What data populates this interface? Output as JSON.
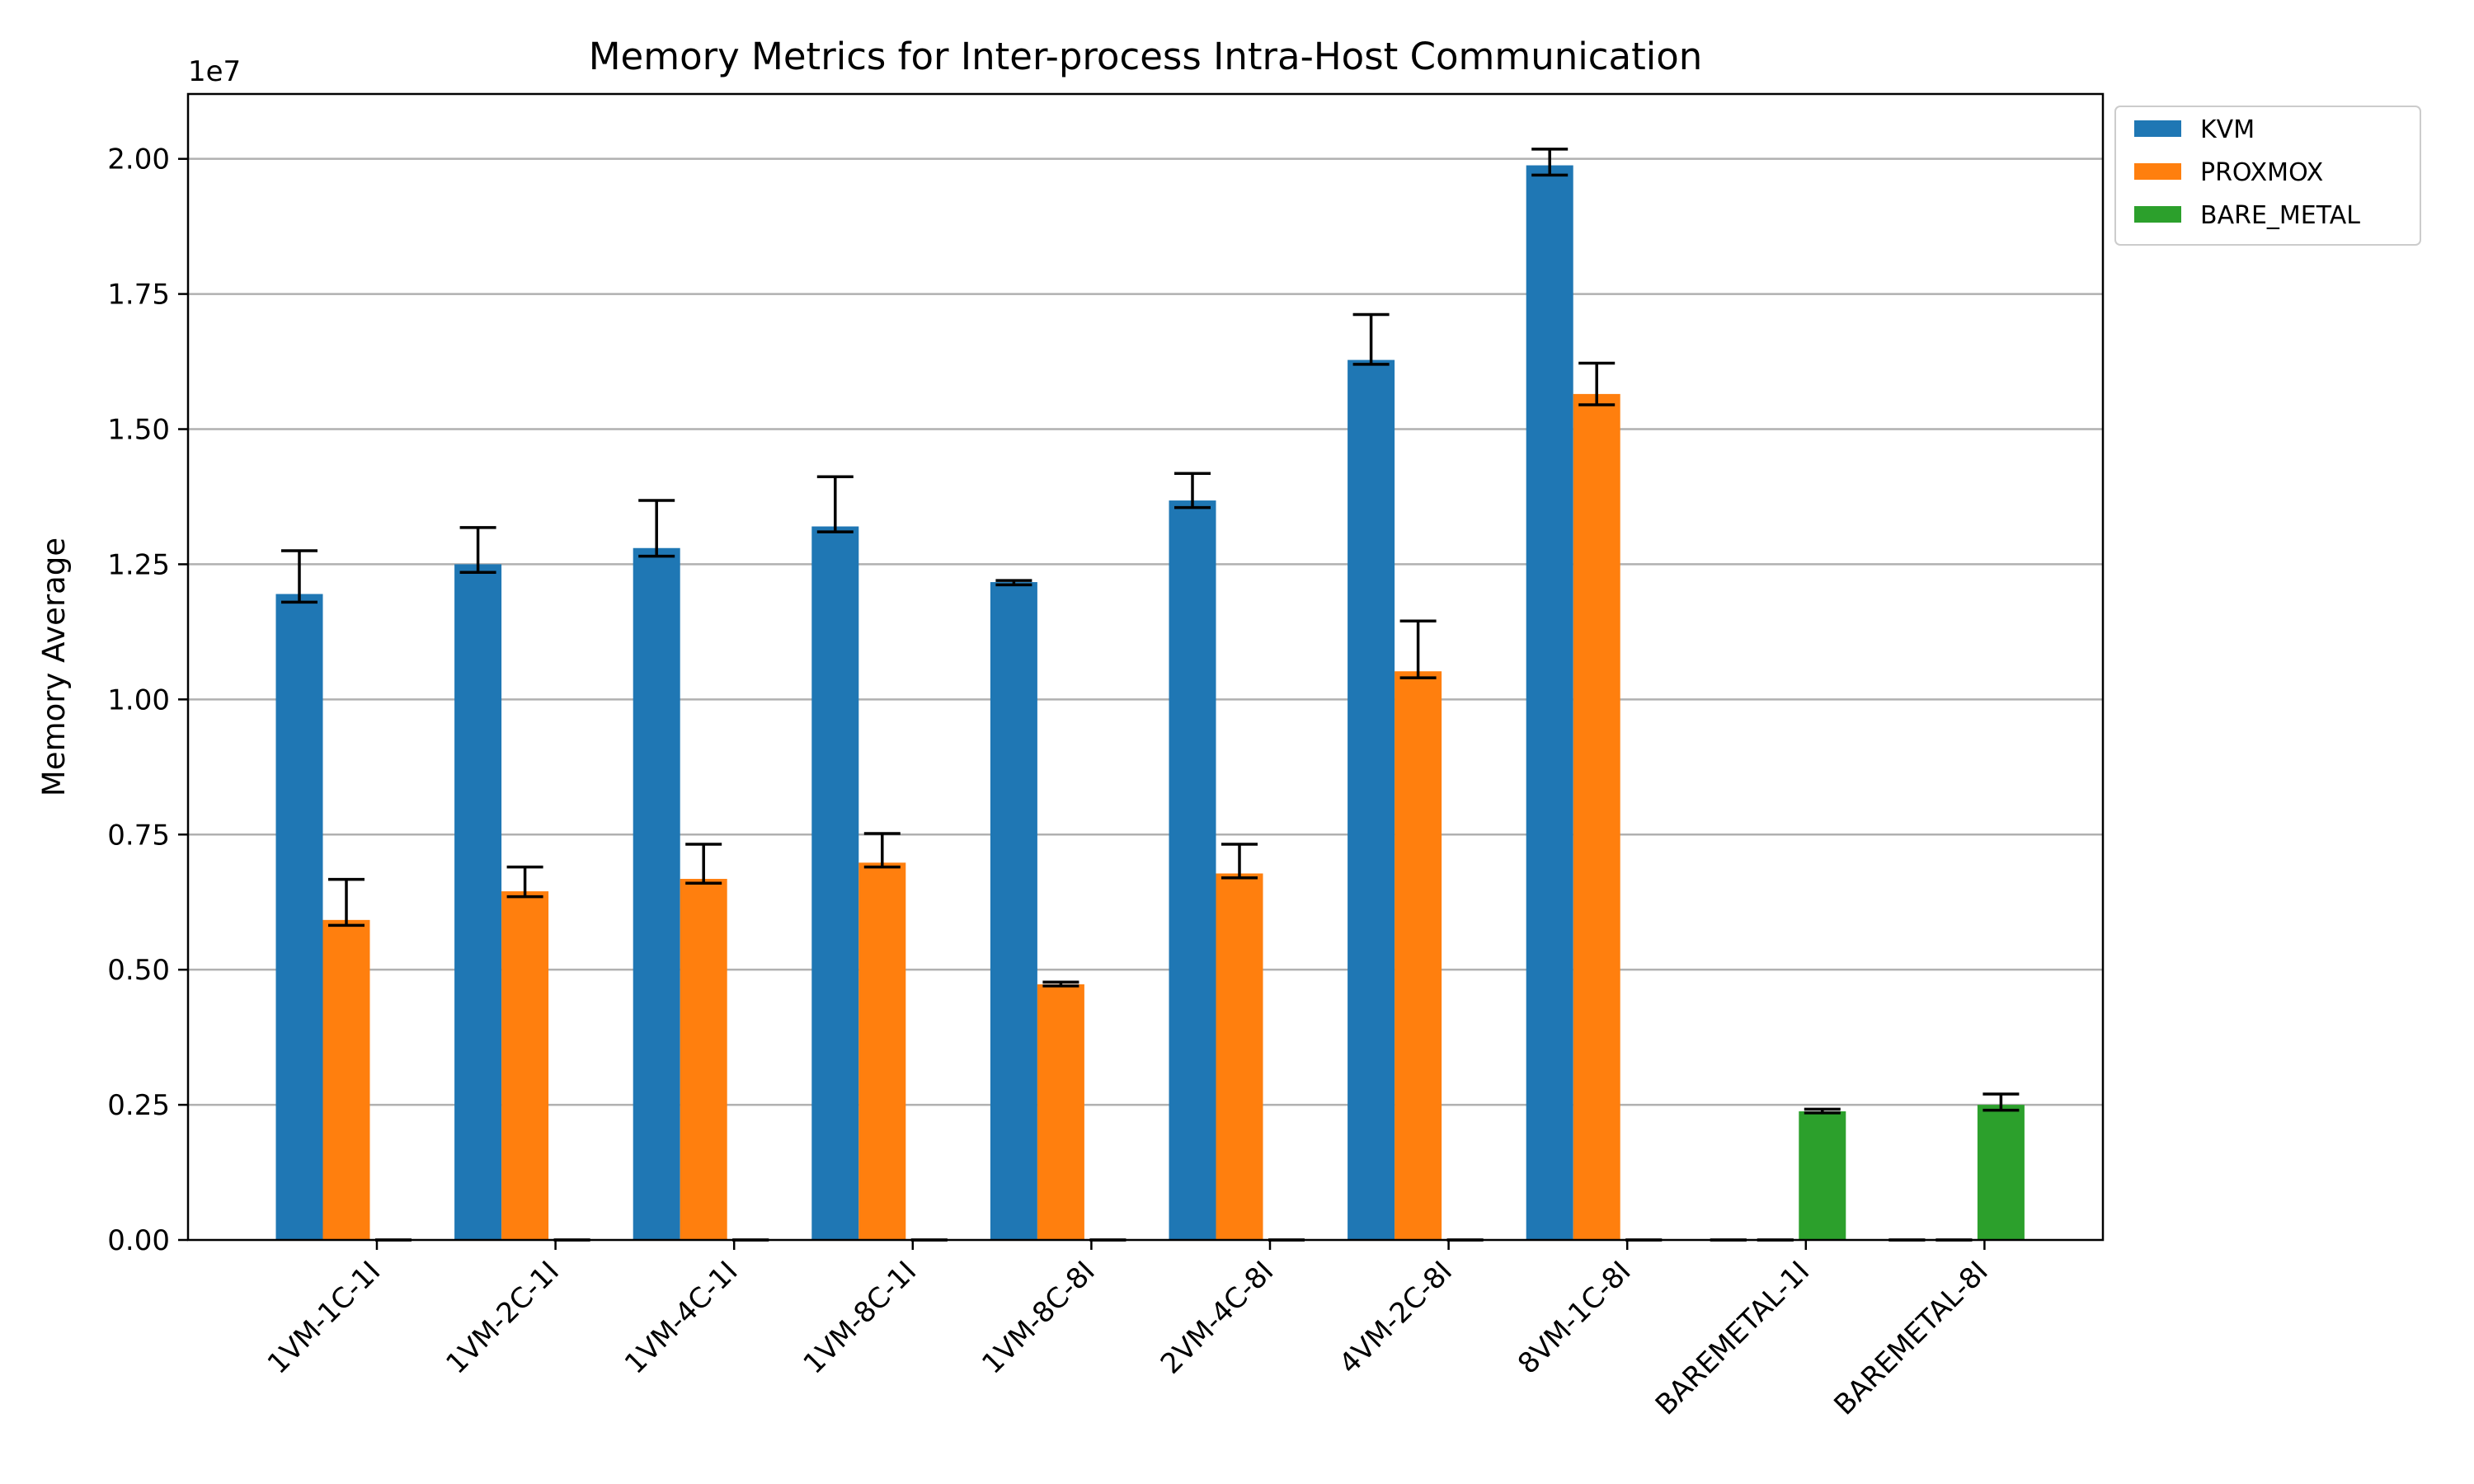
{
  "chart_data": {
    "type": "bar",
    "title": "Memory Metrics for Inter-process Intra-Host Communication",
    "xlabel": "",
    "ylabel": "Memory Average",
    "y_multiplier_label": "1e7",
    "ylim": [
      0,
      2.12
    ],
    "y_scale_note": "values in units of 1e7",
    "yticks": [
      "0.00",
      "0.25",
      "0.50",
      "0.75",
      "1.00",
      "1.25",
      "1.50",
      "1.75",
      "2.00"
    ],
    "grid": "horizontal",
    "legend_position": "top-right outside",
    "categories": [
      "1VM-1C-1I",
      "1VM-2C-1I",
      "1VM-4C-1I",
      "1VM-8C-1I",
      "1VM-8C-8I",
      "2VM-4C-8I",
      "4VM-2C-8I",
      "8VM-1C-8I",
      "BAREMETAL-1I",
      "BAREMETAL-8I"
    ],
    "series": [
      {
        "name": "KVM",
        "color": "#1f77b4",
        "values": [
          1.195,
          1.25,
          1.28,
          1.32,
          1.217,
          1.368,
          1.628,
          1.988,
          0,
          0
        ],
        "err_low": [
          1.18,
          1.235,
          1.265,
          1.31,
          1.212,
          1.355,
          1.62,
          1.97,
          0,
          0
        ],
        "err_high": [
          1.275,
          1.318,
          1.368,
          1.412,
          1.22,
          1.418,
          1.712,
          2.018,
          0,
          0
        ]
      },
      {
        "name": "PROXMOX",
        "color": "#ff7f0e",
        "values": [
          0.592,
          0.645,
          0.668,
          0.698,
          0.473,
          0.678,
          1.052,
          1.565,
          0,
          0
        ],
        "err_low": [
          0.582,
          0.635,
          0.66,
          0.69,
          0.47,
          0.67,
          1.04,
          1.545,
          0,
          0
        ],
        "err_high": [
          0.667,
          0.69,
          0.732,
          0.752,
          0.477,
          0.732,
          1.145,
          1.622,
          0,
          0
        ]
      },
      {
        "name": "BARE_METAL",
        "color": "#2ca02c",
        "values": [
          0,
          0,
          0,
          0,
          0,
          0,
          0,
          0,
          0.238,
          0.25
        ],
        "err_low": [
          0,
          0,
          0,
          0,
          0,
          0,
          0,
          0,
          0.235,
          0.24
        ],
        "err_high": [
          0,
          0,
          0,
          0,
          0,
          0,
          0,
          0,
          0.242,
          0.27
        ]
      }
    ]
  }
}
